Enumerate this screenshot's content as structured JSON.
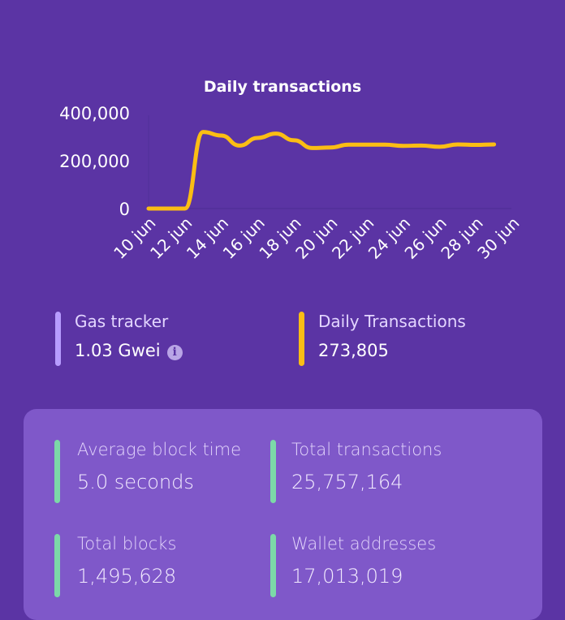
{
  "chart_data": {
    "type": "line",
    "title": "Daily transactions",
    "x": [
      "10 jun",
      "11 jun",
      "12 jun",
      "13 jun",
      "14 jun",
      "15 jun",
      "16 jun",
      "17 jun",
      "18 jun",
      "19 jun",
      "20 jun",
      "21 jun",
      "22 jun",
      "23 jun",
      "24 jun",
      "25 jun",
      "26 jun",
      "27 jun",
      "28 jun",
      "29 jun"
    ],
    "values": [
      0,
      0,
      0,
      320000,
      305000,
      263000,
      295000,
      313000,
      285000,
      253000,
      255000,
      267000,
      267000,
      267000,
      262000,
      263000,
      258000,
      268000,
      266000,
      268000
    ],
    "x_ticks": [
      "10 jun",
      "12 jun",
      "14 jun",
      "16 jun",
      "18 jun",
      "20 jun",
      "22 jun",
      "24 jun",
      "26 jun",
      "28 jun",
      "30 jun"
    ],
    "y_ticks": [
      "0",
      "200,000",
      "400,000"
    ],
    "ylim": [
      0,
      400000
    ],
    "grid": false,
    "line_color": "#fbbd14"
  },
  "stats": {
    "gas": {
      "label": "Gas tracker",
      "value": "1.03 Gwei",
      "icon": "info-icon",
      "color": "#b79cff"
    },
    "daily": {
      "label": "Daily Transactions",
      "value": "273,805",
      "color": "#fbbd14"
    }
  },
  "card": {
    "color": "#7cd9a8",
    "items": [
      {
        "label": "Average block time",
        "value": "5.0 seconds"
      },
      {
        "label": "Total transactions",
        "value": "25,757,164"
      },
      {
        "label": "Total blocks",
        "value": "1,495,628"
      },
      {
        "label": "Wallet addresses",
        "value": "17,013,019"
      }
    ]
  }
}
